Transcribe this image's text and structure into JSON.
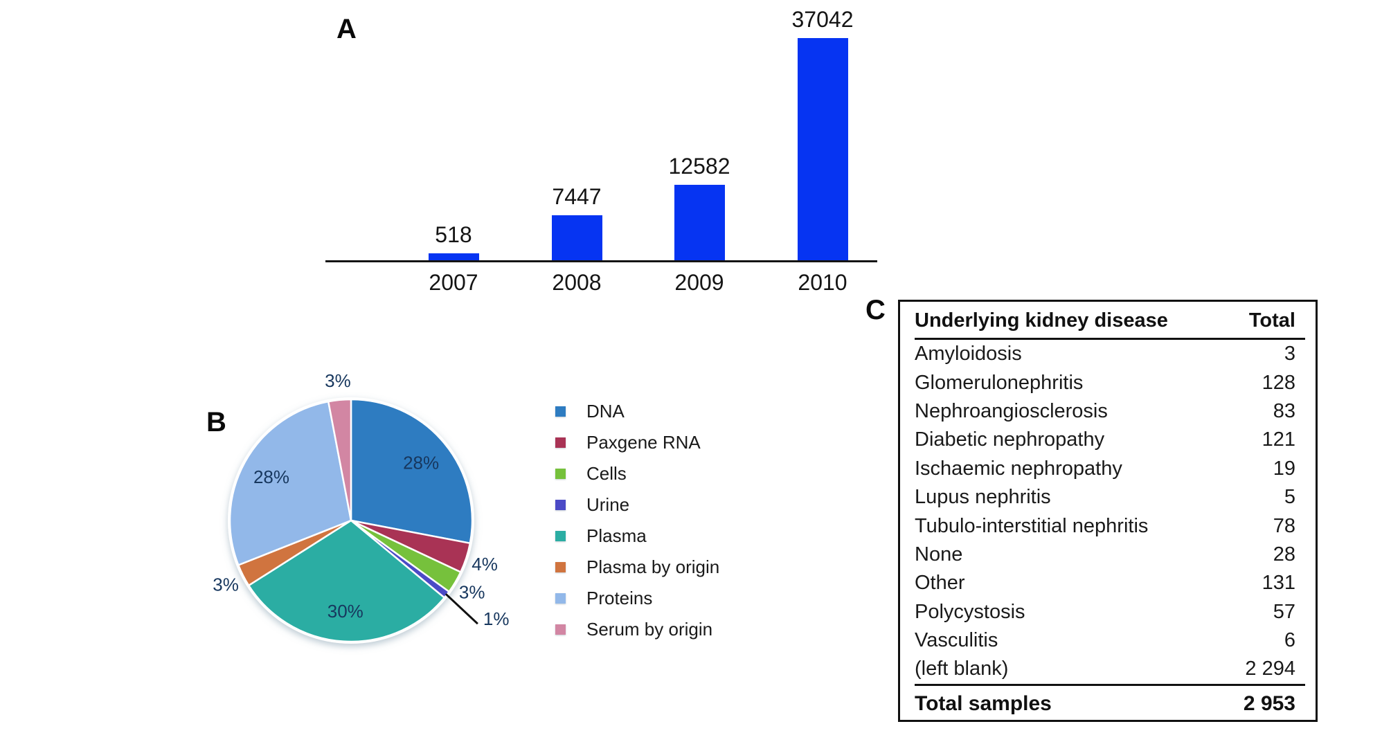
{
  "figure": {
    "panel_a_label": "A",
    "panel_b_label": "B",
    "panel_c_label": "C"
  },
  "colors": {
    "bar_blue": "#0634F2",
    "axis_black": "#141414",
    "pie_percent_label": "#17375E"
  },
  "chart_data": [
    {
      "type": "bar",
      "panel": "A",
      "title": "",
      "categories": [
        "2007",
        "2008",
        "2009",
        "2010"
      ],
      "values": [
        518,
        7447,
        12582,
        37042
      ],
      "data_labels": [
        "518",
        "7447",
        "12582",
        "37042"
      ],
      "bar_color": "#0634F2",
      "xlabel": "",
      "ylabel": "",
      "grid": false,
      "legend": false
    },
    {
      "type": "pie",
      "panel": "B",
      "title": "",
      "start_angle_deg": 0,
      "direction": "clockwise",
      "slices": [
        {
          "label": "DNA",
          "pct": 28,
          "pct_label": "28%",
          "color": "#2E7CC1",
          "label_pos": "inside"
        },
        {
          "label": "Paxgene RNA",
          "pct": 4,
          "pct_label": "4%",
          "color": "#A93355",
          "label_pos": "outside"
        },
        {
          "label": "Cells",
          "pct": 3,
          "pct_label": "3%",
          "color": "#76C13C",
          "label_pos": "outside"
        },
        {
          "label": "Urine",
          "pct": 1,
          "pct_label": "1%",
          "color": "#4B4AC6",
          "label_pos": "leader"
        },
        {
          "label": "Plasma",
          "pct": 30,
          "pct_label": "30%",
          "color": "#2BADA3",
          "label_pos": "inside"
        },
        {
          "label": "Plasma by origin",
          "pct": 3,
          "pct_label": "3%",
          "color": "#D0743F",
          "label_pos": "outside"
        },
        {
          "label": "Proteins",
          "pct": 28,
          "pct_label": "28%",
          "color": "#92B8E9",
          "label_pos": "inside"
        },
        {
          "label": "Serum by origin",
          "pct": 3,
          "pct_label": "3%",
          "color": "#D286A3",
          "label_pos": "outside"
        }
      ],
      "legend_position": "right",
      "legend_entries": [
        "DNA",
        "Paxgene RNA",
        "Cells",
        "Urine",
        "Plasma",
        "Plasma by origin",
        "Proteins",
        "Serum by origin"
      ]
    },
    {
      "type": "table",
      "panel": "C",
      "columns": [
        "Underlying kidney disease",
        "Total"
      ],
      "rows": [
        [
          "Amyloidosis",
          "3"
        ],
        [
          "Glomerulonephritis",
          "128"
        ],
        [
          "Nephroangiosclerosis",
          "83"
        ],
        [
          "Diabetic nephropathy",
          "121"
        ],
        [
          "Ischaemic nephropathy",
          "19"
        ],
        [
          "Lupus nephritis",
          "5"
        ],
        [
          "Tubulo-interstitial nephritis",
          "78"
        ],
        [
          "None",
          "28"
        ],
        [
          "Other",
          "131"
        ],
        [
          "Polycystosis",
          "57"
        ],
        [
          "Vasculitis",
          "6"
        ],
        [
          "(left blank)",
          "2 294"
        ]
      ],
      "footer": [
        "Total samples",
        "2 953"
      ]
    }
  ]
}
